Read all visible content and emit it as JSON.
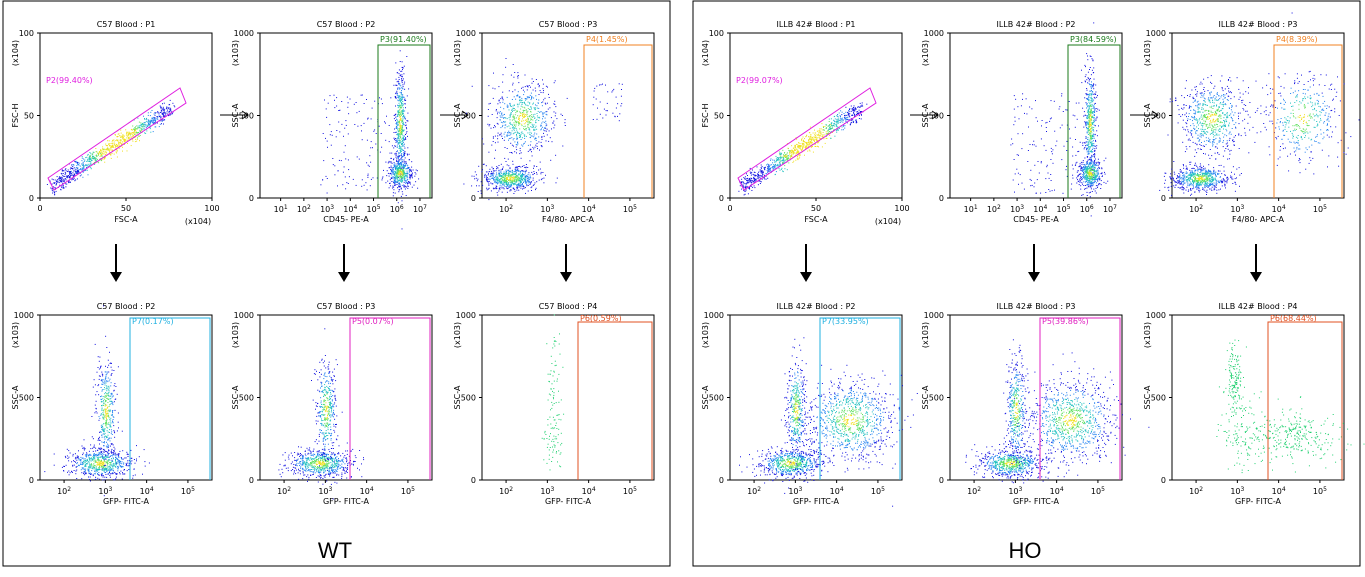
{
  "panels": [
    {
      "label": "WT",
      "plots": [
        {
          "title": "C57 Blood : P1",
          "type": "fsc",
          "ylabel": "FSC-H",
          "xlabel": "FSC-A",
          "gate": "P2(99.40%)",
          "gateColor": "#e020e0",
          "pop": {
            "angle": 0
          }
        },
        {
          "title": "C57 Blood : P2",
          "type": "cd45",
          "ylabel": "SSC-A",
          "xlabel": "CD45- PE-A",
          "gate": "P3(91.40%)",
          "gateColor": "#1a7a1a"
        },
        {
          "title": "C57 Blood : P3",
          "type": "f480",
          "ylabel": "SSC-A",
          "xlabel": "F4/80- APC-A",
          "gate": "P4(1.45%)",
          "gateColor": "#f08020",
          "pop": {
            "pos": "low"
          }
        },
        {
          "title": "C57 Blood : P2",
          "type": "gfp",
          "ylabel": "SSC-A",
          "xlabel": "GFP- FITC-A",
          "gate": "P7(0.17%)",
          "gateColor": "#20b0e0",
          "pop": {
            "pos": "low"
          }
        },
        {
          "title": "C57 Blood : P3",
          "type": "gfp",
          "ylabel": "SSC-A",
          "xlabel": "GFP- FITC-A",
          "gate": "P5(0.07%)",
          "gateColor": "#e020c0",
          "pop": {
            "pos": "low"
          }
        },
        {
          "title": "C57 Blood : P4",
          "type": "gfp4",
          "ylabel": "SSC-A",
          "xlabel": "GFP- FITC-A",
          "gate": "P6(0.59%)",
          "gateColor": "#e05020",
          "pop": {
            "pos": "low"
          }
        }
      ]
    },
    {
      "label": "HO",
      "plots": [
        {
          "title": "ILLB 42# Blood : P1",
          "type": "fsc",
          "ylabel": "FSC-H",
          "xlabel": "FSC-A",
          "gate": "P2(99.07%)",
          "gateColor": "#e020e0",
          "pop": {
            "angle": 0
          }
        },
        {
          "title": "ILLB 42# Blood : P2",
          "type": "cd45",
          "ylabel": "SSC-A",
          "xlabel": "CD45- PE-A",
          "gate": "P3(84.59%)",
          "gateColor": "#1a7a1a"
        },
        {
          "title": "ILLB 42# Blood : P3",
          "type": "f480",
          "ylabel": "SSC-A",
          "xlabel": "F4/80- APC-A",
          "gate": "P4(8.39%)",
          "gateColor": "#f08020",
          "pop": {
            "pos": "high"
          }
        },
        {
          "title": "ILLB 42# Blood : P2",
          "type": "gfp",
          "ylabel": "SSC-A",
          "xlabel": "GFP- FITC-A",
          "gate": "P7(33.95%)",
          "gateColor": "#20b0e0",
          "pop": {
            "pos": "high"
          }
        },
        {
          "title": "ILLB 42# Blood : P3",
          "type": "gfp",
          "ylabel": "SSC-A",
          "xlabel": "GFP- FITC-A",
          "gate": "P5(39.86%)",
          "gateColor": "#e020c0",
          "pop": {
            "pos": "high"
          }
        },
        {
          "title": "ILLB 42# Blood : P4",
          "type": "gfp4",
          "ylabel": "SSC-A",
          "xlabel": "GFP- FITC-A",
          "gate": "P6(68.44%)",
          "gateColor": "#e05020",
          "pop": {
            "pos": "high"
          }
        }
      ]
    }
  ],
  "ticks": {
    "fscX": [
      "0",
      "50",
      "100"
    ],
    "fscY": [
      "0",
      "50",
      "100"
    ],
    "fscUnit": "(x10",
    "fscExp": "4",
    "sscY": [
      "0",
      "500",
      "1000"
    ],
    "sscUnit": "(x10",
    "sscExp": "3",
    "cd45X": [
      {
        "b": "10",
        "e": "1"
      },
      {
        "b": "10",
        "e": "2"
      },
      {
        "b": "10",
        "e": "3"
      },
      {
        "b": "10",
        "e": "4"
      },
      {
        "b": "10",
        "e": "5"
      },
      {
        "b": "10",
        "e": "6"
      },
      {
        "b": "10",
        "e": "7"
      }
    ],
    "logX": [
      {
        "b": "10",
        "e": "2"
      },
      {
        "b": "10",
        "e": "3"
      },
      {
        "b": "10",
        "e": "4"
      },
      {
        "b": "10",
        "e": "5"
      }
    ]
  },
  "chart_data": {
    "type": "scatter",
    "note_axes": {
      "fsc_range": [
        0,
        100
      ],
      "ssc_range": [
        0,
        1000
      ]
    },
    "gates": {
      "WT": {
        "P2": 99.4,
        "P3": 91.4,
        "P4": 1.45,
        "P7": 0.17,
        "P5": 0.07,
        "P6": 0.59
      },
      "HO": {
        "P2": 99.07,
        "P3": 84.59,
        "P4": 8.39,
        "P7": 33.95,
        "P5": 39.86,
        "P6": 68.44
      }
    }
  }
}
